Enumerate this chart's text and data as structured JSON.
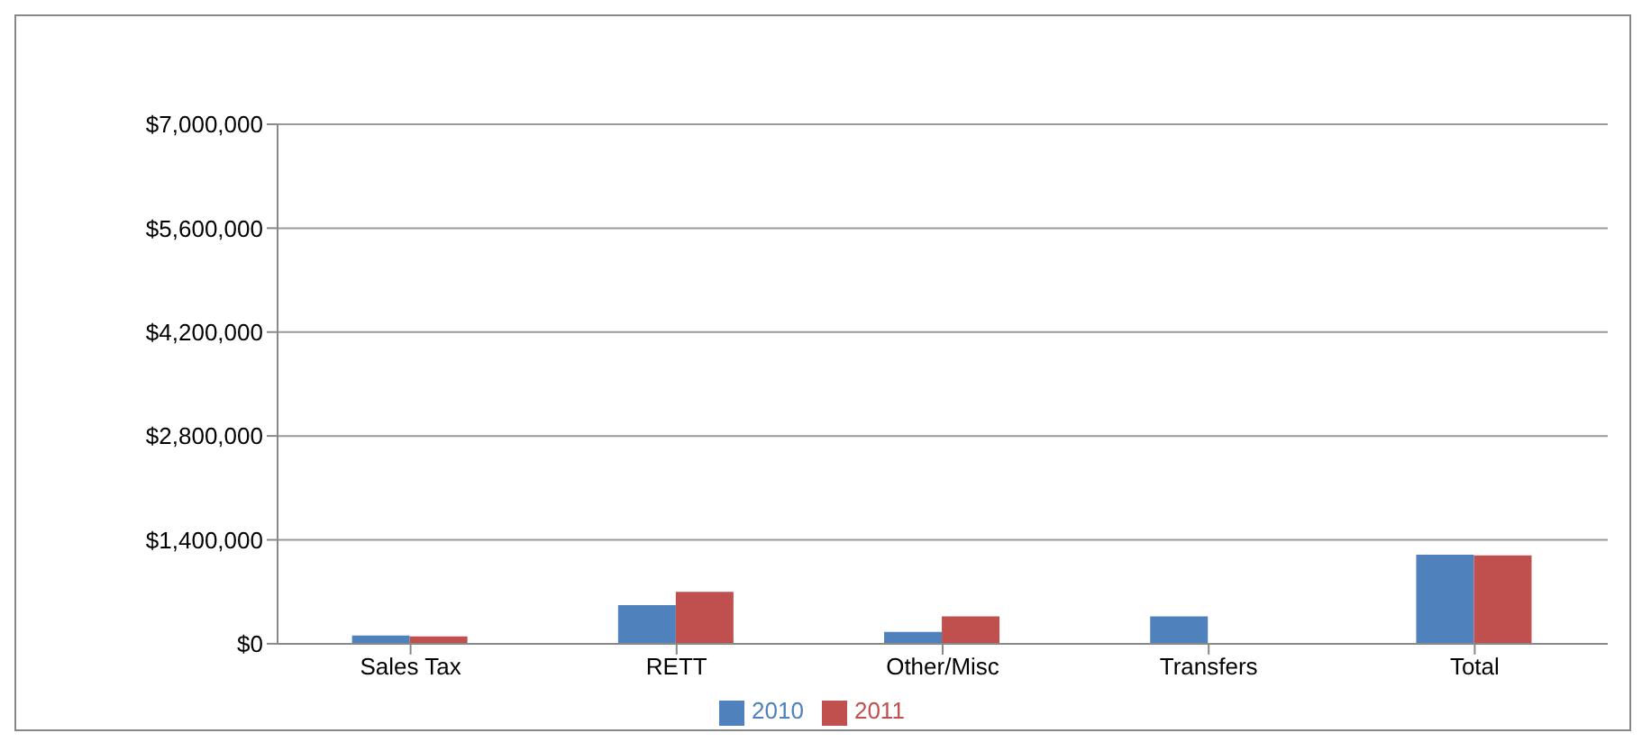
{
  "chart_data": {
    "type": "bar",
    "categories": [
      "Sales Tax",
      "RETT",
      "Other/Misc",
      "Transfers",
      "Total"
    ],
    "series": [
      {
        "name": "2010",
        "color": "#4f81bd",
        "values": [
          110000,
          520000,
          160000,
          370000,
          1200000
        ]
      },
      {
        "name": "2011",
        "color": "#c0504d",
        "values": [
          100000,
          700000,
          370000,
          0,
          1190000
        ]
      }
    ],
    "ylim": [
      0,
      7000000
    ],
    "yticks": [
      {
        "value": 0,
        "label": "$0"
      },
      {
        "value": 1400000,
        "label": "$1,400,000"
      },
      {
        "value": 2800000,
        "label": "$2,800,000"
      },
      {
        "value": 4200000,
        "label": "$4,200,000"
      },
      {
        "value": 5600000,
        "label": "$5,600,000"
      },
      {
        "value": 7000000,
        "label": "$7,000,000"
      }
    ],
    "grid": "y",
    "legend": "bottom"
  }
}
